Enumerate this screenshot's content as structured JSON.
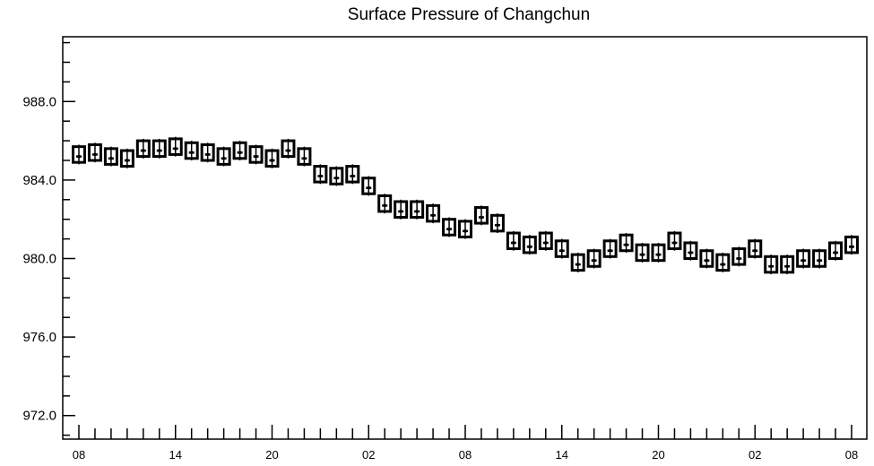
{
  "chart_data": {
    "type": "boxplot",
    "title": "Surface Pressure of Changchun",
    "xlabel": "",
    "ylabel": "",
    "ylim": [
      970.8,
      991.3
    ],
    "y_ticks": [
      "972.0",
      "976.0",
      "980.0",
      "984.0",
      "988.0"
    ],
    "y_tick_values": [
      972,
      976,
      980,
      984,
      988
    ],
    "x_tick_labels": [
      "08",
      "14",
      "20",
      "02",
      "08",
      "14",
      "20",
      "02",
      "08"
    ],
    "x_tick_indices": [
      0,
      6,
      12,
      18,
      24,
      30,
      36,
      42,
      48
    ],
    "grid": false,
    "series": [
      {
        "medians": [
          985.2,
          985.3,
          985.1,
          985.0,
          985.5,
          985.5,
          985.6,
          985.4,
          985.3,
          985.1,
          985.4,
          985.2,
          985.0,
          985.5,
          985.1,
          984.2,
          984.1,
          984.2,
          983.6,
          982.7,
          982.4,
          982.4,
          982.2,
          981.5,
          981.4,
          982.1,
          981.7,
          980.8,
          980.6,
          980.8,
          980.4,
          979.7,
          979.9,
          980.4,
          980.7,
          980.2,
          980.2,
          980.8,
          980.3,
          979.9,
          979.7,
          980.0,
          980.4,
          979.6,
          979.6,
          979.9,
          979.9,
          980.3,
          980.6
        ],
        "q1": [
          984.9,
          985.0,
          984.8,
          984.7,
          985.2,
          985.2,
          985.3,
          985.1,
          985.0,
          984.8,
          985.1,
          984.9,
          984.7,
          985.2,
          984.8,
          983.9,
          983.8,
          983.9,
          983.3,
          982.4,
          982.1,
          982.1,
          981.9,
          981.2,
          981.1,
          981.8,
          981.4,
          980.5,
          980.3,
          980.5,
          980.1,
          979.4,
          979.6,
          980.1,
          980.4,
          979.9,
          979.9,
          980.5,
          980.0,
          979.6,
          979.4,
          979.7,
          980.1,
          979.3,
          979.3,
          979.6,
          979.6,
          980.0,
          980.3
        ],
        "q3": [
          985.7,
          985.8,
          985.6,
          985.5,
          986.0,
          986.0,
          986.1,
          985.9,
          985.8,
          985.6,
          985.9,
          985.7,
          985.5,
          986.0,
          985.6,
          984.7,
          984.6,
          984.7,
          984.1,
          983.2,
          982.9,
          982.9,
          982.7,
          982.0,
          981.9,
          982.6,
          982.2,
          981.3,
          981.1,
          981.3,
          980.9,
          980.2,
          980.4,
          980.9,
          981.2,
          980.7,
          980.7,
          981.3,
          980.8,
          980.4,
          980.2,
          980.5,
          980.9,
          980.1,
          980.1,
          980.4,
          980.4,
          980.8,
          981.1
        ],
        "whisker_low": [
          984.8,
          984.9,
          984.7,
          984.6,
          985.1,
          985.1,
          985.2,
          985.0,
          984.9,
          984.7,
          985.0,
          984.8,
          984.6,
          985.1,
          984.7,
          983.8,
          983.7,
          983.8,
          983.2,
          982.3,
          982.0,
          982.0,
          981.8,
          981.1,
          981.0,
          981.7,
          981.3,
          980.4,
          980.2,
          980.4,
          980.0,
          979.3,
          979.5,
          980.0,
          980.3,
          979.8,
          979.8,
          980.4,
          979.9,
          979.5,
          979.3,
          979.6,
          980.0,
          979.2,
          979.2,
          979.5,
          979.5,
          979.9,
          980.2
        ],
        "whisker_high": [
          985.8,
          985.9,
          985.7,
          985.6,
          986.1,
          986.1,
          986.2,
          986.0,
          985.9,
          985.7,
          986.0,
          985.8,
          985.6,
          986.1,
          985.7,
          984.8,
          984.7,
          984.8,
          984.2,
          983.3,
          983.0,
          983.0,
          982.8,
          982.1,
          982.0,
          982.7,
          982.3,
          981.4,
          981.2,
          981.4,
          981.0,
          980.3,
          980.5,
          981.0,
          981.3,
          980.8,
          980.8,
          981.4,
          980.9,
          980.5,
          980.3,
          980.6,
          981.0,
          980.2,
          980.2,
          980.5,
          980.5,
          980.9,
          981.2
        ]
      }
    ]
  }
}
